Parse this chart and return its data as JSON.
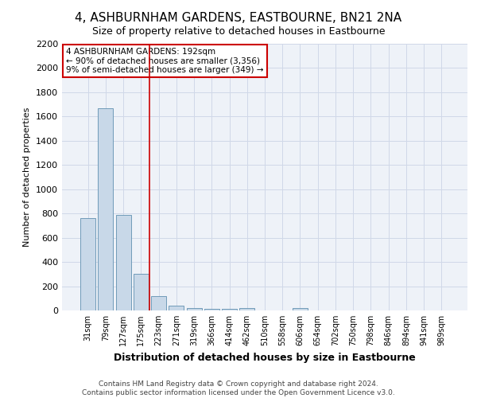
{
  "title": "4, ASHBURNHAM GARDENS, EASTBOURNE, BN21 2NA",
  "subtitle": "Size of property relative to detached houses in Eastbourne",
  "xlabel": "Distribution of detached houses by size in Eastbourne",
  "ylabel": "Number of detached properties",
  "footer_line1": "Contains HM Land Registry data © Crown copyright and database right 2024.",
  "footer_line2": "Contains public sector information licensed under the Open Government Licence v3.0.",
  "categories": [
    "31sqm",
    "79sqm",
    "127sqm",
    "175sqm",
    "223sqm",
    "271sqm",
    "319sqm",
    "366sqm",
    "414sqm",
    "462sqm",
    "510sqm",
    "558sqm",
    "606sqm",
    "654sqm",
    "702sqm",
    "750sqm",
    "798sqm",
    "846sqm",
    "894sqm",
    "941sqm",
    "989sqm"
  ],
  "values": [
    760,
    1670,
    790,
    300,
    115,
    40,
    20,
    15,
    12,
    20,
    0,
    0,
    20,
    0,
    0,
    0,
    0,
    0,
    0,
    0,
    0
  ],
  "bar_color": "#c8d8e8",
  "bar_edge_color": "#6090b0",
  "marker_index": 4,
  "marker_color": "#cc0000",
  "annotation_text": "4 ASHBURNHAM GARDENS: 192sqm\n← 90% of detached houses are smaller (3,356)\n9% of semi-detached houses are larger (349) →",
  "annotation_box_color": "#ffffff",
  "annotation_box_edge": "#cc0000",
  "ylim": [
    0,
    2200
  ],
  "yticks": [
    0,
    200,
    400,
    600,
    800,
    1000,
    1200,
    1400,
    1600,
    1800,
    2000,
    2200
  ],
  "grid_color": "#d0d8e8",
  "background_color": "#eef2f8",
  "title_fontsize": 11,
  "subtitle_fontsize": 9,
  "footer_fontsize": 6.5
}
